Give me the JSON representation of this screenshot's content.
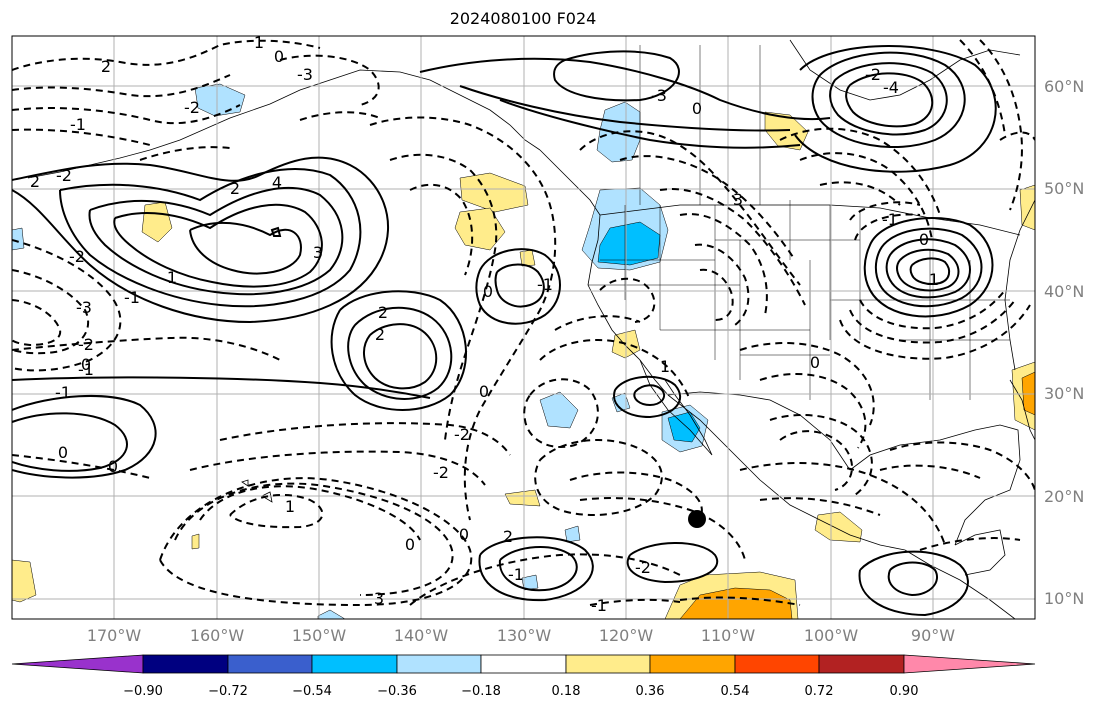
{
  "title": "2024080100 F024",
  "lat_labels": [
    "60°N",
    "50°N",
    "40°N",
    "30°N",
    "20°N",
    "10°N"
  ],
  "lon_labels": [
    "170°W",
    "160°W",
    "150°W",
    "140°W",
    "130°W",
    "120°W",
    "110°W",
    "100°W",
    "90°W"
  ],
  "colorbar": {
    "ticks": [
      "−0.90",
      "−0.72",
      "−0.54",
      "−0.36",
      "−0.18",
      "0.18",
      "0.36",
      "0.54",
      "0.72",
      "0.90"
    ],
    "colors": [
      "#9932cc",
      "#000080",
      "#3a5fcd",
      "#00bfff",
      "#b0e2ff",
      "#ffffff",
      "#ffec8b",
      "#ffa500",
      "#ff4500",
      "#b22222",
      "#ff88aa"
    ]
  },
  "contour_labels": [
    "2",
    "1",
    "0",
    "-2",
    "-3",
    "-1",
    "2",
    "4",
    "3",
    "-2",
    "-1",
    "1",
    "-2",
    "2",
    "-3",
    "-2",
    "-1",
    "0",
    "2",
    "2",
    "0",
    "0",
    "-1",
    "-2",
    "0",
    "-2",
    "-1",
    "0",
    "1",
    "0",
    "0",
    "2",
    "3",
    "-3",
    "0",
    "-2",
    "-4",
    "3",
    "-1",
    "0",
    "1",
    "0",
    "1",
    "-2",
    "-1",
    "-1"
  ],
  "marker": "station-dot"
}
